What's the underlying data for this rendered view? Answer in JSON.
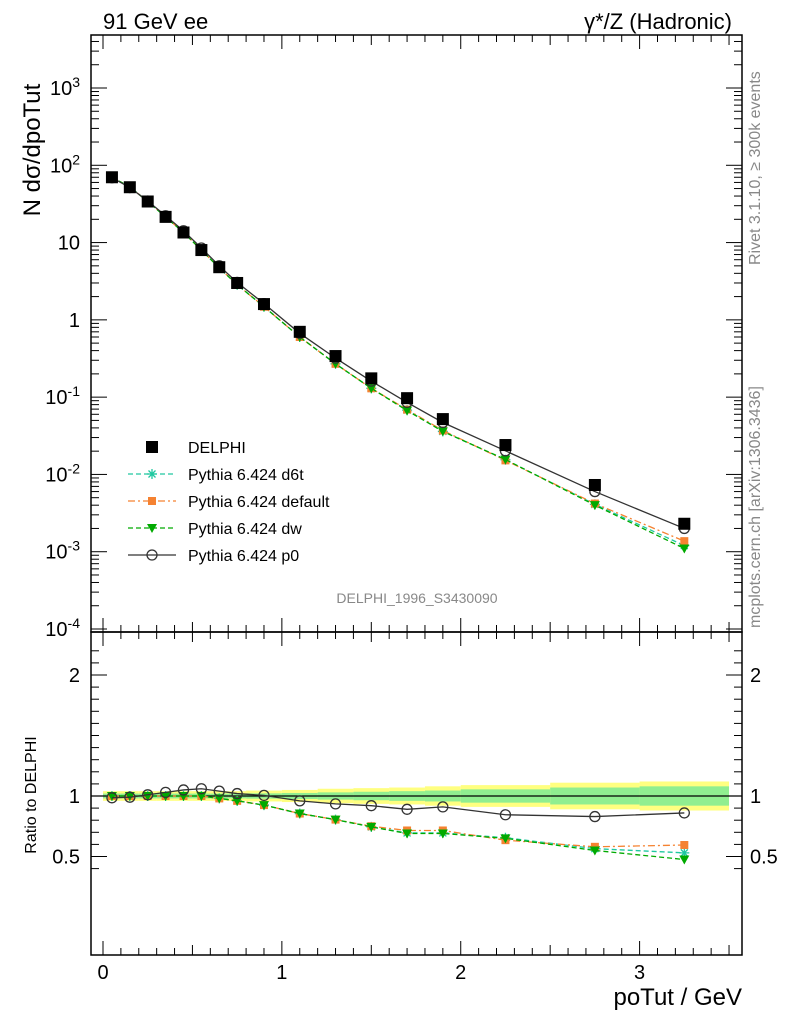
{
  "header": {
    "left": "91 GeV ee",
    "right": "γ*/Z (Hadronic)"
  },
  "side_labels": {
    "rivet": "Rivet 3.1.10, ≥ 300k events",
    "mcplots": "mcplots.cern.ch [arXiv:1306.3436]"
  },
  "watermark": "DELPHI_1996_S3430090",
  "chart_data": [
    {
      "panel": "main",
      "type": "scatter",
      "ylabel": "N dσ/dpoTut",
      "yscale": "log",
      "ylim": [
        0.0001,
        5000
      ],
      "xlim": [
        -0.05,
        3.55
      ],
      "y_tick_labels": [
        "10^-4",
        "10^-3",
        "10^-2",
        "10^-1",
        "1",
        "10",
        "10^2",
        "10^3"
      ],
      "legend_position": "lower-left",
      "x": [
        0.05,
        0.15,
        0.25,
        0.35,
        0.45,
        0.55,
        0.65,
        0.75,
        0.9,
        1.1,
        1.3,
        1.5,
        1.7,
        1.9,
        2.25,
        2.75,
        3.25
      ],
      "series": [
        {
          "name": "DELPHI",
          "color": "#000000",
          "marker": "filled-square",
          "values": [
            70,
            52,
            34,
            21.5,
            13.5,
            8,
            4.8,
            3.0,
            1.6,
            0.7,
            0.34,
            0.175,
            0.097,
            0.052,
            0.024,
            0.0073,
            0.0023
          ]
        },
        {
          "name": "Pythia 6.424 d6t",
          "color": "#20c8a0",
          "marker": "star",
          "line": "dashed",
          "values": [
            70,
            52.5,
            34,
            21.5,
            13.5,
            8,
            4.7,
            2.85,
            1.48,
            0.6,
            0.27,
            0.13,
            0.068,
            0.036,
            0.0155,
            0.0041,
            0.0012
          ]
        },
        {
          "name": "Pythia 6.424 default",
          "color": "#f58231",
          "marker": "filled-square-small",
          "line": "dashdot",
          "values": [
            70,
            52.5,
            34,
            21.5,
            13.5,
            8,
            4.7,
            2.85,
            1.48,
            0.6,
            0.27,
            0.13,
            0.069,
            0.037,
            0.0152,
            0.0042,
            0.00137
          ]
        },
        {
          "name": "Pythia 6.424 dw",
          "color": "#00aa00",
          "marker": "filled-triangle-down",
          "line": "dashed",
          "values": [
            70,
            52.5,
            34,
            21.5,
            13.5,
            8,
            4.7,
            2.85,
            1.48,
            0.6,
            0.27,
            0.13,
            0.067,
            0.036,
            0.0156,
            0.004,
            0.0011
          ]
        },
        {
          "name": "Pythia 6.424 p0",
          "color": "#333333",
          "marker": "open-circle",
          "line": "solid",
          "values": [
            69,
            51.5,
            34.5,
            22.2,
            14.2,
            8.5,
            5.0,
            3.05,
            1.62,
            0.67,
            0.32,
            0.161,
            0.0855,
            0.047,
            0.0202,
            0.006,
            0.002
          ]
        }
      ]
    },
    {
      "panel": "ratio",
      "type": "scatter",
      "ylabel": "Ratio to DELPHI",
      "xlabel": "poTut / GeV",
      "ylim": [
        0.35,
        2.3
      ],
      "xlim": [
        -0.05,
        3.55
      ],
      "x_tick_labels": [
        "0",
        "1",
        "2",
        "3"
      ],
      "y_tick_labels": [
        "0.5",
        "1",
        "2"
      ],
      "x": [
        0.05,
        0.15,
        0.25,
        0.35,
        0.45,
        0.55,
        0.65,
        0.75,
        0.9,
        1.1,
        1.3,
        1.5,
        1.7,
        1.9,
        2.25,
        2.75,
        3.25
      ],
      "band_edges": [
        0,
        0.1,
        0.2,
        0.3,
        0.4,
        0.5,
        0.6,
        0.7,
        0.8,
        1.0,
        1.2,
        1.4,
        1.6,
        1.8,
        2.0,
        2.5,
        3.0,
        3.5
      ],
      "band_stat": [
        0.02,
        0.02,
        0.02,
        0.02,
        0.02,
        0.02,
        0.02,
        0.02,
        0.022,
        0.025,
        0.03,
        0.035,
        0.04,
        0.045,
        0.055,
        0.07,
        0.08
      ],
      "band_total": [
        0.04,
        0.04,
        0.04,
        0.04,
        0.04,
        0.04,
        0.04,
        0.04,
        0.045,
        0.05,
        0.06,
        0.065,
        0.07,
        0.08,
        0.09,
        0.11,
        0.12
      ],
      "series": [
        {
          "name": "Pythia 6.424 d6t",
          "color": "#20c8a0",
          "values": [
            1.0,
            1.0,
            1.0,
            1.0,
            1.0,
            1.0,
            0.98,
            0.96,
            0.925,
            0.855,
            0.805,
            0.745,
            0.695,
            0.695,
            0.655,
            0.565,
            0.53
          ]
        },
        {
          "name": "Pythia 6.424 default",
          "color": "#f58231",
          "values": [
            1.0,
            1.0,
            1.0,
            1.0,
            1.0,
            1.0,
            0.98,
            0.96,
            0.925,
            0.855,
            0.805,
            0.75,
            0.715,
            0.715,
            0.635,
            0.58,
            0.595
          ]
        },
        {
          "name": "Pythia 6.424 dw",
          "color": "#00aa00",
          "values": [
            1.0,
            1.0,
            1.0,
            1.0,
            1.0,
            1.0,
            0.98,
            0.96,
            0.925,
            0.855,
            0.805,
            0.745,
            0.69,
            0.69,
            0.65,
            0.55,
            0.475
          ]
        },
        {
          "name": "Pythia 6.424 p0",
          "color": "#333333",
          "values": [
            0.985,
            0.99,
            1.01,
            1.03,
            1.05,
            1.06,
            1.04,
            1.02,
            1.005,
            0.96,
            0.935,
            0.92,
            0.89,
            0.91,
            0.845,
            0.83,
            0.86
          ]
        }
      ]
    }
  ]
}
